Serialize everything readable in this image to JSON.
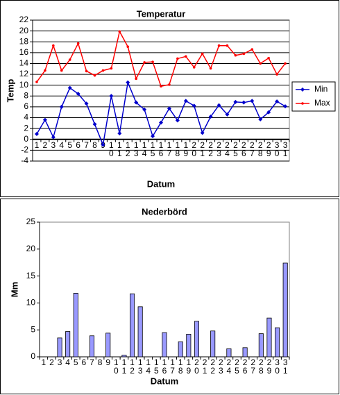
{
  "chart_data": [
    {
      "type": "line",
      "title": "Temperatur",
      "y_label": "Temp",
      "x_label": "Datum",
      "categories": [
        "1",
        "2",
        "3",
        "4",
        "5",
        "6",
        "7",
        "8",
        "9",
        "10",
        "11",
        "12",
        "13",
        "14",
        "15",
        "16",
        "17",
        "18",
        "19",
        "20",
        "21",
        "22",
        "23",
        "24",
        "25",
        "26",
        "27",
        "28",
        "29",
        "30",
        "31"
      ],
      "series": [
        {
          "name": "Min",
          "color": "#0000cc",
          "marker": "diamond",
          "values": [
            1.0,
            3.6,
            0.4,
            6.0,
            9.5,
            8.4,
            6.6,
            2.8,
            -1.0,
            8.0,
            1.1,
            10.5,
            6.8,
            5.5,
            0.6,
            3.1,
            5.7,
            3.5,
            7.1,
            6.2,
            1.2,
            4.2,
            6.3,
            4.6,
            6.9,
            6.8,
            7.1,
            3.7,
            5.0,
            7.0,
            6.1
          ]
        },
        {
          "name": "Max",
          "color": "#ff0000",
          "marker": "dot",
          "values": [
            10.6,
            12.7,
            17.3,
            12.7,
            14.7,
            17.7,
            12.6,
            11.8,
            12.7,
            13.1,
            19.9,
            17.1,
            11.2,
            14.2,
            14.3,
            9.8,
            10.1,
            14.9,
            15.3,
            13.3,
            15.8,
            13.1,
            17.3,
            17.3,
            15.5,
            15.8,
            16.6,
            14.0,
            15.0,
            12.0,
            14.0
          ]
        }
      ],
      "ylim": [
        -4,
        22
      ],
      "yticks": [
        -4,
        -2,
        0,
        2,
        4,
        6,
        8,
        10,
        12,
        14,
        16,
        18,
        20,
        22
      ],
      "grid": true,
      "legend": "right"
    },
    {
      "type": "bar",
      "title": "Nederbörd",
      "y_label": "Mm",
      "x_label": "Datum",
      "categories": [
        "1",
        "2",
        "3",
        "4",
        "5",
        "6",
        "7",
        "8",
        "9",
        "10",
        "11",
        "12",
        "13",
        "14",
        "15",
        "16",
        "17",
        "18",
        "19",
        "20",
        "21",
        "22",
        "23",
        "24",
        "25",
        "26",
        "27",
        "28",
        "29",
        "30",
        "31"
      ],
      "values": [
        0,
        0,
        3.5,
        4.7,
        11.8,
        0,
        3.9,
        0,
        4.4,
        0,
        0.3,
        11.7,
        9.3,
        0,
        0,
        4.5,
        0,
        2.8,
        4.2,
        6.6,
        0,
        4.8,
        0,
        1.5,
        0,
        1.7,
        0,
        4.3,
        7.2,
        5.4,
        17.4
      ],
      "color": "#9999ff",
      "ylim": [
        0,
        25
      ],
      "yticks": [
        0,
        5,
        10,
        15,
        20,
        25
      ],
      "grid": false
    }
  ]
}
